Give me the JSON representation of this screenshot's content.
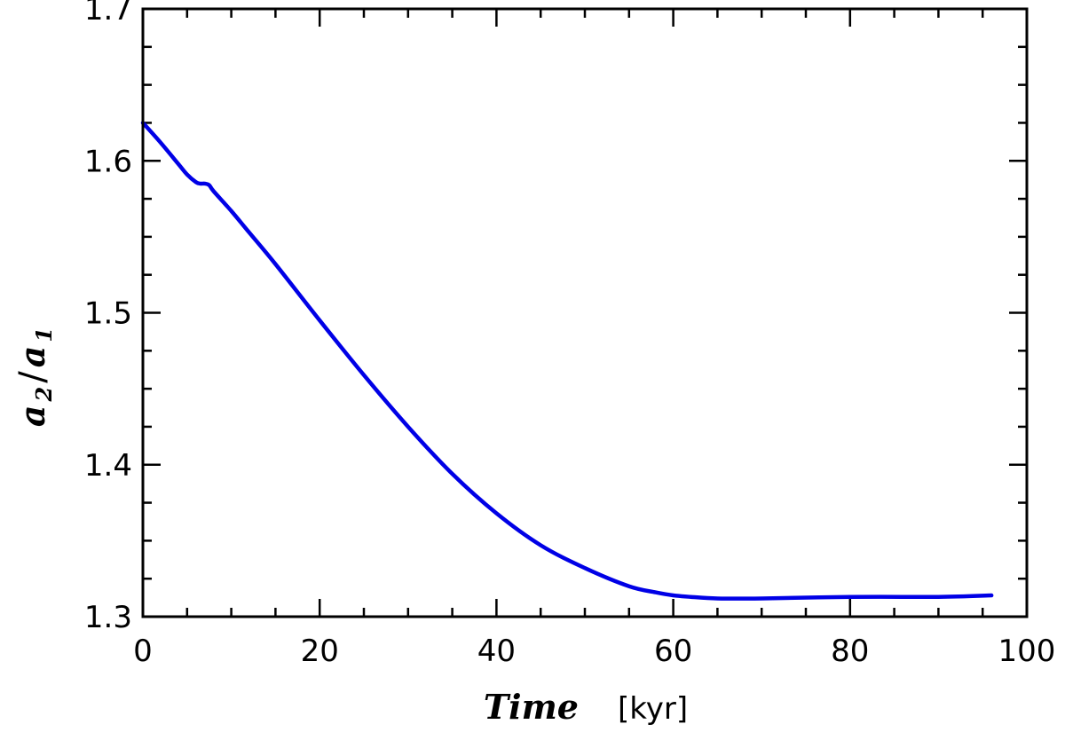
{
  "chart_data": {
    "type": "line",
    "title": "",
    "xlabel": {
      "main": "Time",
      "unit": "[kyr]"
    },
    "ylabel": {
      "a": "a",
      "sub2": "2",
      "slash": "/",
      "sub1": "1"
    },
    "xlim": [
      0,
      100
    ],
    "ylim": [
      1.3,
      1.7
    ],
    "x_ticks": [
      0,
      20,
      40,
      60,
      80,
      100
    ],
    "x_tick_labels": [
      "0",
      "20",
      "40",
      "60",
      "80",
      "100"
    ],
    "y_ticks": [
      1.3,
      1.4,
      1.5,
      1.6,
      1.7
    ],
    "y_tick_labels": [
      "1.3",
      "1.4",
      "1.5",
      "1.6",
      "1.7"
    ],
    "x_minor_step": 5,
    "y_minor_step": 0.025,
    "grid": false,
    "series": [
      {
        "color": "#0000e6",
        "x": [
          0,
          2,
          4,
          5,
          6,
          6.5,
          7,
          7.5,
          8,
          10,
          12,
          15,
          20,
          25,
          30,
          35,
          40,
          45,
          50,
          55,
          58,
          60,
          62,
          65,
          70,
          80,
          90,
          96
        ],
        "y": [
          1.625,
          1.612,
          1.598,
          1.591,
          1.586,
          1.585,
          1.585,
          1.584,
          1.58,
          1.567,
          1.553,
          1.532,
          1.495,
          1.459,
          1.425,
          1.394,
          1.368,
          1.347,
          1.332,
          1.32,
          1.316,
          1.314,
          1.313,
          1.312,
          1.312,
          1.313,
          1.313,
          1.314
        ]
      }
    ]
  }
}
